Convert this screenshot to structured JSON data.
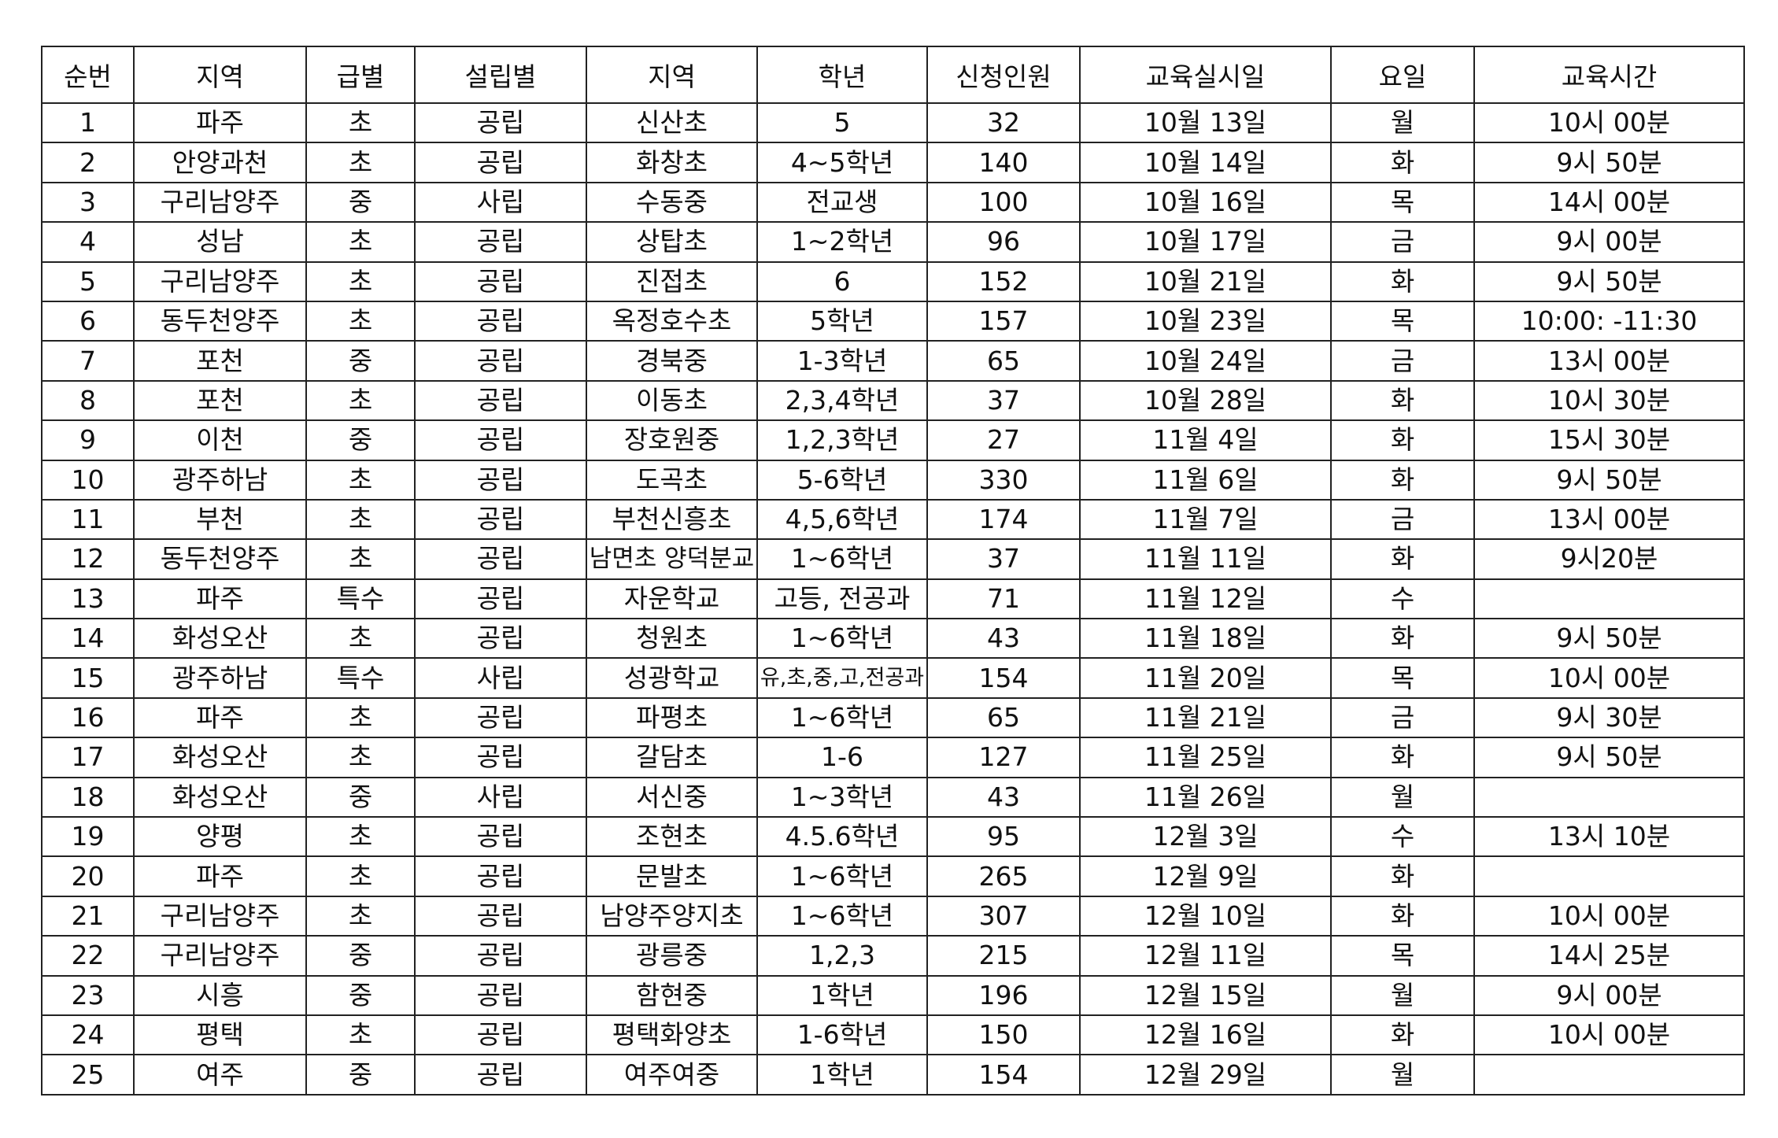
{
  "table": {
    "header": [
      "순번",
      "지역",
      "급별",
      "설립별",
      "지역",
      "학년",
      "신청인원",
      "교육실시일",
      "요일",
      "교육시간"
    ],
    "rows": [
      [
        "1",
        "파주",
        "초",
        "공립",
        "신산초",
        "5",
        "32",
        "10월 13일",
        "월",
        "10시 00분"
      ],
      [
        "2",
        "안양과천",
        "초",
        "공립",
        "화창초",
        "4~5학년",
        "140",
        "10월 14일",
        "화",
        "9시 50분"
      ],
      [
        "3",
        "구리남양주",
        "중",
        "사립",
        "수동중",
        "전교생",
        "100",
        "10월 16일",
        "목",
        "14시 00분"
      ],
      [
        "4",
        "성남",
        "초",
        "공립",
        "상탑초",
        "1~2학년",
        "96",
        "10월 17일",
        "금",
        "9시 00분"
      ],
      [
        "5",
        "구리남양주",
        "초",
        "공립",
        "진접초",
        "6",
        "152",
        "10월 21일",
        "화",
        "9시 50분"
      ],
      [
        "6",
        "동두천양주",
        "초",
        "공립",
        "옥정호수초",
        "5학년",
        "157",
        "10월 23일",
        "목",
        "10:00: -11:30"
      ],
      [
        "7",
        "포천",
        "중",
        "공립",
        "경북중",
        "1-3학년",
        "65",
        "10월 24일",
        "금",
        "13시 00분"
      ],
      [
        "8",
        "포천",
        "초",
        "공립",
        "이동초",
        "2,3,4학년",
        "37",
        "10월 28일",
        "화",
        "10시 30분"
      ],
      [
        "9",
        "이천",
        "중",
        "공립",
        "장호원중",
        "1,2,3학년",
        "27",
        "11월 4일",
        "화",
        "15시 30분"
      ],
      [
        "10",
        "광주하남",
        "초",
        "공립",
        "도곡초",
        "5-6학년",
        "330",
        "11월 6일",
        "화",
        "9시 50분"
      ],
      [
        "11",
        "부천",
        "초",
        "공립",
        "부천신흥초",
        "4,5,6학년",
        "174",
        "11월 7일",
        "금",
        "13시 00분"
      ],
      [
        "12",
        "동두천양주",
        "초",
        "공립",
        "남면초 양덕분교",
        "1~6학년",
        "37",
        "11월 11일",
        "화",
        "9시20분"
      ],
      [
        "13",
        "파주",
        "특수",
        "공립",
        "자운학교",
        "고등, 전공과",
        "71",
        "11월 12일",
        "수",
        null
      ],
      [
        "14",
        "화성오산",
        "초",
        "공립",
        "청원초",
        "1~6학년",
        "43",
        "11월 18일",
        "화",
        "9시 50분"
      ],
      [
        "15",
        "광주하남",
        "특수",
        "사립",
        "성광학교",
        "유,초,중,고,전공과",
        "154",
        "11월 20일",
        "목",
        "10시 00분"
      ],
      [
        "16",
        "파주",
        "초",
        "공립",
        "파평초",
        "1~6학년",
        "65",
        "11월 21일",
        "금",
        "9시 30분"
      ],
      [
        "17",
        "화성오산",
        "초",
        "공립",
        "갈담초",
        "1-6",
        "127",
        "11월 25일",
        "화",
        "9시 50분"
      ],
      [
        "18",
        "화성오산",
        "중",
        "사립",
        "서신중",
        "1~3학년",
        "43",
        "11월 26일",
        "월",
        null
      ],
      [
        "19",
        "양평",
        "초",
        "공립",
        "조현초",
        "4.5.6학년",
        "95",
        "12월 3일",
        "수",
        "13시 10분"
      ],
      [
        "20",
        "파주",
        "초",
        "공립",
        "문발초",
        "1~6학년",
        "265",
        "12월 9일",
        "화",
        null
      ],
      [
        "21",
        "구리남양주",
        "초",
        "공립",
        "남양주양지초",
        "1~6학년",
        "307",
        "12월 10일",
        "화",
        "10시 00분"
      ],
      [
        "22",
        "구리남양주",
        "중",
        "공립",
        "광릉중",
        "1,2,3",
        "215",
        "12월 11일",
        "목",
        "14시 25분"
      ],
      [
        "23",
        "시흥",
        "중",
        "공립",
        "함현중",
        "1학년",
        "196",
        "12월 15일",
        "월",
        "9시 00분"
      ],
      [
        "24",
        "평택",
        "초",
        "공립",
        "평택화양초",
        "1-6학년",
        "150",
        "12월 16일",
        "화",
        "10시 00분"
      ],
      [
        "25",
        "여주",
        "중",
        "공립",
        "여주여중",
        "1학년",
        "154",
        "12월 29일",
        "월",
        null
      ]
    ]
  }
}
